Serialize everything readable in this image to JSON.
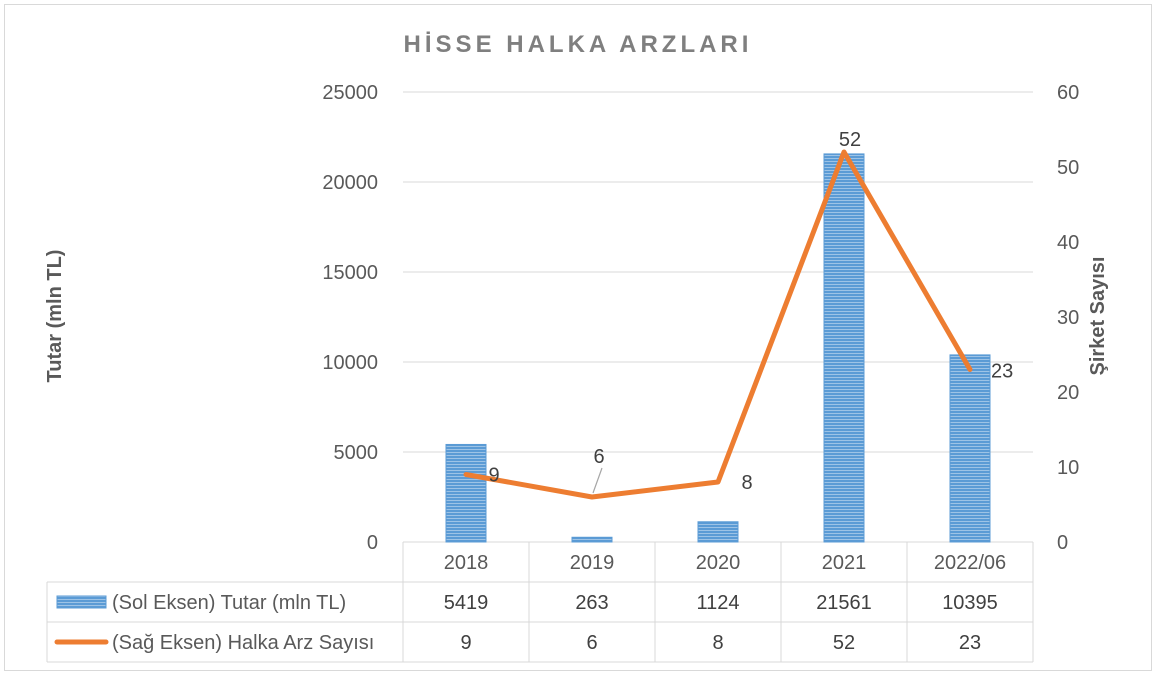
{
  "chart_data": {
    "type": "bar",
    "title": "HİSSE HALKA ARZLARI",
    "categories": [
      "2018",
      "2019",
      "2020",
      "2021",
      "2022/06"
    ],
    "ylabel_left": "Tutar (mln TL)",
    "ylabel_right": "Şirket Sayısı",
    "ylim_left": [
      0,
      25000
    ],
    "yticks_left": [
      "0",
      "5000",
      "10000",
      "15000",
      "20000",
      "25000"
    ],
    "ylim_right": [
      0,
      60
    ],
    "yticks_right": [
      "0",
      "10",
      "20",
      "30",
      "40",
      "50",
      "60"
    ],
    "grid": true,
    "legend": "data-table",
    "series": [
      {
        "name": "(Sol Eksen) Tutar (mln TL)",
        "type": "bar",
        "axis": "left",
        "color": "#5b9bd5",
        "values": [
          5419,
          263,
          1124,
          21561,
          10395
        ]
      },
      {
        "name": "(Sağ Eksen) Halka Arz Sayısı",
        "type": "line",
        "axis": "right",
        "color": "#ed7d31",
        "values": [
          9,
          6,
          8,
          52,
          23
        ]
      }
    ],
    "data_labels": [
      "9",
      "6",
      "8",
      "52",
      "23"
    ],
    "table_values": [
      [
        "5419",
        "263",
        "1124",
        "21561",
        "10395"
      ],
      [
        "9",
        "6",
        "8",
        "52",
        "23"
      ]
    ]
  }
}
